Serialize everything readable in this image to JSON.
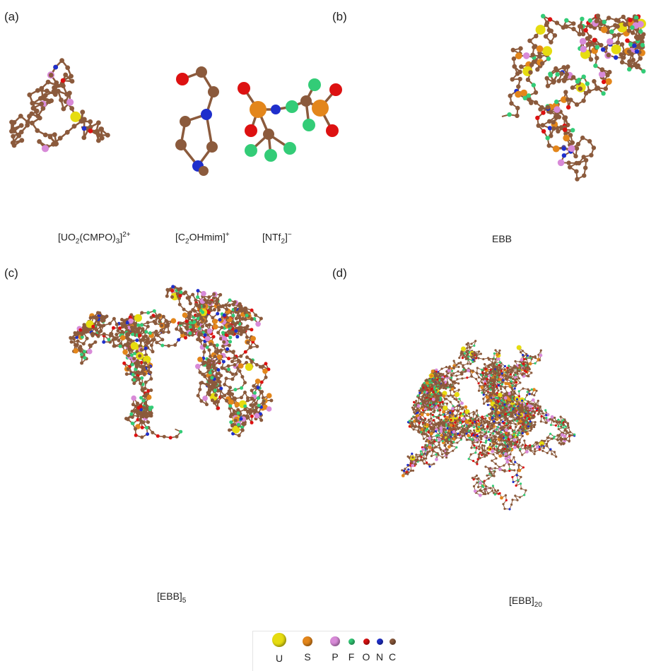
{
  "panels": {
    "a": {
      "label": "(a)",
      "captions": [
        {
          "text": "[UO",
          "sub1": "2",
          "mid": "(CMPO)",
          "sub2": "3",
          "end": "]",
          "sup": "2+"
        },
        {
          "text": "[C",
          "sub1": "2",
          "mid": "OHmim]",
          "sup": "+"
        },
        {
          "text": "[NTf",
          "sub1": "2",
          "mid": "]",
          "sup": "−"
        }
      ]
    },
    "b": {
      "label": "(b)",
      "caption": "EBB"
    },
    "c": {
      "label": "(c)",
      "caption_main": "[EBB]",
      "caption_sub": "5"
    },
    "d": {
      "label": "(d)",
      "caption_main": "[EBB]",
      "caption_sub": "20"
    }
  },
  "legend": {
    "items": [
      {
        "symbol": "U",
        "color": "#e6dc10",
        "size": 20,
        "icon": "uranium-atom-icon"
      },
      {
        "symbol": "S",
        "color": "#e3861b",
        "size": 14,
        "icon": "sulfur-atom-icon"
      },
      {
        "symbol": "P",
        "color": "#d88ad8",
        "size": 14,
        "icon": "phosphorus-atom-icon"
      },
      {
        "symbol": "F",
        "color": "#33cc77",
        "size": 9,
        "icon": "fluorine-atom-icon"
      },
      {
        "symbol": "O",
        "color": "#dd1111",
        "size": 9,
        "icon": "oxygen-atom-icon"
      },
      {
        "symbol": "N",
        "color": "#1f2fcc",
        "size": 9,
        "icon": "nitrogen-atom-icon"
      },
      {
        "symbol": "C",
        "color": "#8b5a3c",
        "size": 9,
        "icon": "carbon-atom-icon"
      }
    ]
  }
}
